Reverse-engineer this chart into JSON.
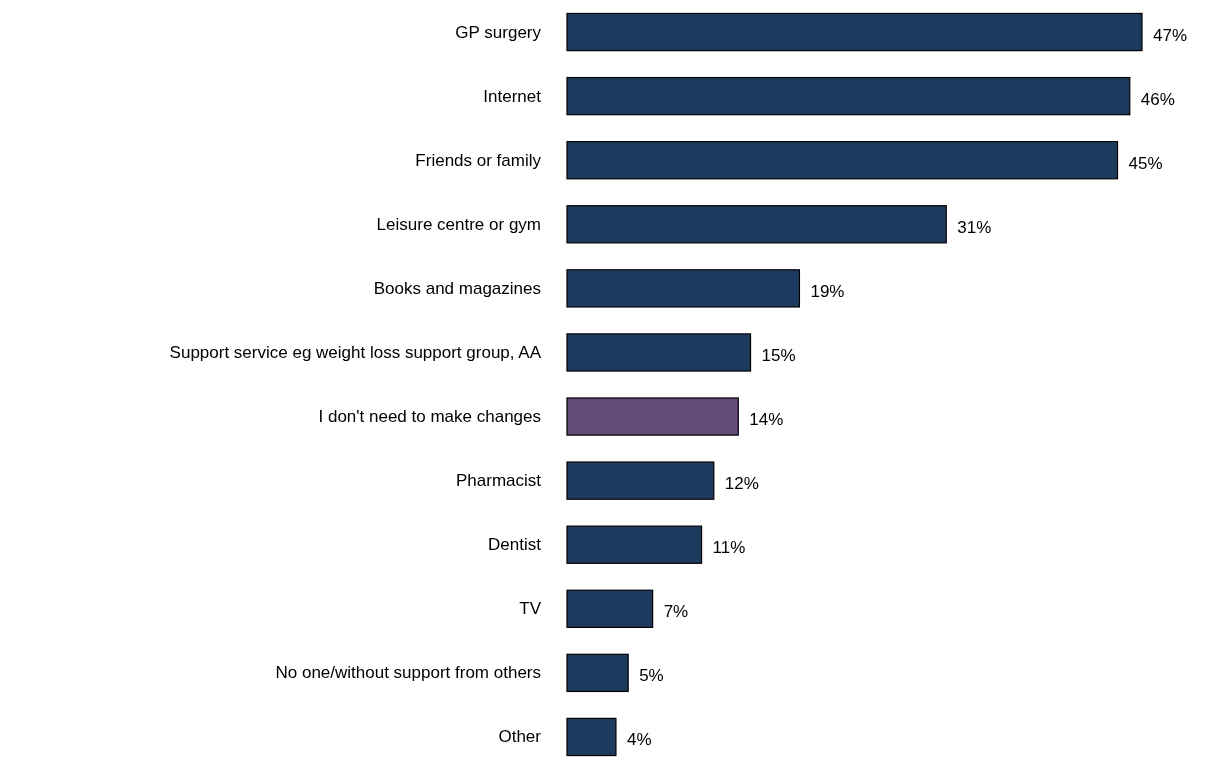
{
  "chart_data": {
    "type": "bar",
    "orientation": "horizontal",
    "categories": [
      "GP surgery",
      "Internet",
      "Friends or family",
      "Leisure centre or gym",
      "Books and magazines",
      "Support service eg weight loss support group, AA",
      "I don't need to make changes",
      "Pharmacist",
      "Dentist",
      "TV",
      "No one/without support from others",
      "Other"
    ],
    "values": [
      47,
      46,
      45,
      31,
      19,
      15,
      14,
      12,
      11,
      7,
      5,
      4
    ],
    "colors": [
      "#1d3a5f",
      "#1d3a5f",
      "#1d3a5f",
      "#1d3a5f",
      "#1d3a5f",
      "#1d3a5f",
      "#654c7a",
      "#1d3a5f",
      "#1d3a5f",
      "#1d3a5f",
      "#1d3a5f",
      "#1d3a5f"
    ],
    "value_labels": [
      "47%",
      "46%",
      "45%",
      "31%",
      "19%",
      "15%",
      "14%",
      "12%",
      "11%",
      "7%",
      "5%",
      "4%"
    ]
  }
}
